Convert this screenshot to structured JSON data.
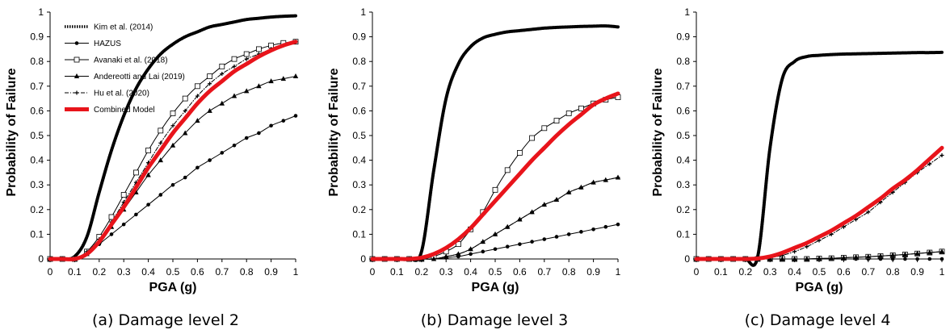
{
  "figure": {
    "legend": [
      {
        "key": "kim",
        "label": "Kim et al. (2014)"
      },
      {
        "key": "hazus",
        "label": "HAZUS"
      },
      {
        "key": "avanaki",
        "label": "Avanaki et al. (2018)"
      },
      {
        "key": "andreotti",
        "label": "Andereotti and Lai (2019)"
      },
      {
        "key": "hu",
        "label": "Hu et al. (2020)"
      },
      {
        "key": "combined",
        "label": "Combined Model"
      }
    ],
    "colors": {
      "combined": "#e8141b",
      "other": "#000000",
      "background": "#ffffff"
    }
  },
  "chart_data": [
    {
      "type": "line",
      "caption": "(a) Damage level 2",
      "xlabel": "PGA (g)",
      "ylabel": "Probability of Failure",
      "xlim": [
        0,
        1
      ],
      "ylim": [
        0,
        1
      ],
      "xticks": [
        "0",
        "0.1",
        "0.2",
        "0.3",
        "0.4",
        "0.5",
        "0.6",
        "0.7",
        "0.8",
        "0.9",
        "1"
      ],
      "yticks": [
        "0",
        "0.1",
        "0.2",
        "0.3",
        "0.4",
        "0.5",
        "0.6",
        "0.7",
        "0.8",
        "0.9",
        "1"
      ],
      "grid": false,
      "legend_position": "top-left",
      "x": [
        0,
        0.05,
        0.1,
        0.15,
        0.2,
        0.25,
        0.3,
        0.35,
        0.4,
        0.45,
        0.5,
        0.55,
        0.6,
        0.65,
        0.7,
        0.75,
        0.8,
        0.85,
        0.9,
        0.95,
        1.0
      ],
      "series": [
        {
          "name": "Kim et al. (2014)",
          "key": "kim",
          "values": [
            0,
            0,
            0.01,
            0.09,
            0.27,
            0.44,
            0.58,
            0.69,
            0.77,
            0.83,
            0.87,
            0.9,
            0.92,
            0.94,
            0.95,
            0.96,
            0.97,
            0.975,
            0.98,
            0.983,
            0.985
          ]
        },
        {
          "name": "HAZUS",
          "key": "hazus",
          "values": [
            0,
            0,
            0,
            0.02,
            0.06,
            0.1,
            0.14,
            0.18,
            0.22,
            0.26,
            0.3,
            0.33,
            0.37,
            0.4,
            0.43,
            0.46,
            0.49,
            0.51,
            0.54,
            0.56,
            0.58
          ]
        },
        {
          "name": "Avanaki et al. (2018)",
          "key": "avanaki",
          "values": [
            0,
            0,
            0,
            0.03,
            0.09,
            0.17,
            0.26,
            0.35,
            0.44,
            0.52,
            0.59,
            0.65,
            0.7,
            0.74,
            0.78,
            0.81,
            0.83,
            0.85,
            0.865,
            0.875,
            0.88
          ]
        },
        {
          "name": "Andereotti and Lai (2019)",
          "key": "andreotti",
          "values": [
            0,
            0,
            0,
            0.02,
            0.07,
            0.13,
            0.2,
            0.27,
            0.34,
            0.4,
            0.46,
            0.51,
            0.56,
            0.6,
            0.63,
            0.66,
            0.68,
            0.7,
            0.72,
            0.73,
            0.74
          ]
        },
        {
          "name": "Hu et al. (2020)",
          "key": "hu",
          "values": [
            0,
            0,
            0,
            0.03,
            0.08,
            0.15,
            0.23,
            0.31,
            0.39,
            0.47,
            0.54,
            0.6,
            0.66,
            0.71,
            0.75,
            0.78,
            0.81,
            0.83,
            0.85,
            0.865,
            0.88
          ]
        },
        {
          "name": "Combined Model",
          "key": "combined",
          "values": [
            0,
            0,
            0,
            0.02,
            0.07,
            0.14,
            0.21,
            0.29,
            0.37,
            0.44,
            0.51,
            0.57,
            0.63,
            0.68,
            0.72,
            0.76,
            0.79,
            0.82,
            0.845,
            0.865,
            0.88
          ]
        }
      ]
    },
    {
      "type": "line",
      "caption": "(b) Damage level 3",
      "xlabel": "PGA (g)",
      "ylabel": "Probability of Failure",
      "xlim": [
        0,
        1
      ],
      "ylim": [
        0,
        1
      ],
      "xticks": [
        "0",
        "0.1",
        "0.2",
        "0.3",
        "0.4",
        "0.5",
        "0.6",
        "0.7",
        "0.8",
        "0.9",
        "1"
      ],
      "yticks": [
        "0",
        "0.1",
        "0.2",
        "0.3",
        "0.4",
        "0.5",
        "0.6",
        "0.7",
        "0.8",
        "0.9",
        "1"
      ],
      "grid": false,
      "x": [
        0,
        0.05,
        0.1,
        0.15,
        0.2,
        0.25,
        0.3,
        0.35,
        0.4,
        0.45,
        0.5,
        0.55,
        0.6,
        0.65,
        0.7,
        0.75,
        0.8,
        0.85,
        0.9,
        0.95,
        1.0
      ],
      "series": [
        {
          "name": "Kim et al. (2014)",
          "key": "kim",
          "values": [
            0,
            0,
            0,
            0,
            0.03,
            0.36,
            0.65,
            0.79,
            0.86,
            0.895,
            0.91,
            0.92,
            0.925,
            0.93,
            0.935,
            0.938,
            0.94,
            0.942,
            0.943,
            0.944,
            0.94
          ]
        },
        {
          "name": "HAZUS",
          "key": "hazus",
          "values": [
            0,
            0,
            0,
            0,
            0,
            0,
            0.005,
            0.01,
            0.02,
            0.03,
            0.04,
            0.05,
            0.06,
            0.07,
            0.08,
            0.09,
            0.1,
            0.11,
            0.12,
            0.13,
            0.14
          ]
        },
        {
          "name": "Avanaki et al. (2018)",
          "key": "avanaki",
          "values": [
            0,
            0,
            0,
            0,
            0,
            0.01,
            0.03,
            0.06,
            0.12,
            0.19,
            0.28,
            0.36,
            0.43,
            0.49,
            0.53,
            0.56,
            0.59,
            0.61,
            0.63,
            0.645,
            0.655
          ]
        },
        {
          "name": "Andereotti and Lai (2019)",
          "key": "andreotti",
          "values": [
            0,
            0,
            0,
            0,
            0,
            0,
            0.01,
            0.02,
            0.04,
            0.07,
            0.1,
            0.13,
            0.16,
            0.19,
            0.22,
            0.24,
            0.27,
            0.29,
            0.31,
            0.32,
            0.33
          ]
        },
        {
          "name": "Hu et al. (2020)",
          "key": "hu",
          "values": [
            0,
            0,
            0,
            0,
            0,
            0,
            0.01,
            0.02,
            0.04,
            0.07,
            0.1,
            0.13,
            0.16,
            0.19,
            0.22,
            0.24,
            0.27,
            0.29,
            0.31,
            0.32,
            0.33
          ]
        },
        {
          "name": "Combined Model",
          "key": "combined",
          "values": [
            0,
            0,
            0,
            0,
            0.005,
            0.02,
            0.045,
            0.08,
            0.125,
            0.18,
            0.235,
            0.29,
            0.345,
            0.4,
            0.45,
            0.5,
            0.545,
            0.585,
            0.625,
            0.65,
            0.67
          ]
        }
      ]
    },
    {
      "type": "line",
      "caption": "(c) Damage level 4",
      "xlabel": "PGA (g)",
      "ylabel": "Probability of Failure",
      "xlim": [
        0,
        1
      ],
      "ylim": [
        0,
        1
      ],
      "xticks": [
        "0",
        "0.1",
        "0.2",
        "0.3",
        "0.4",
        "0.5",
        "0.6",
        "0.7",
        "0.8",
        "0.9",
        "1"
      ],
      "yticks": [
        "0",
        "0.1",
        "0.2",
        "0.3",
        "0.4",
        "0.5",
        "0.6",
        "0.7",
        "0.8",
        "0.9",
        "1"
      ],
      "grid": false,
      "x": [
        0,
        0.05,
        0.1,
        0.15,
        0.2,
        0.25,
        0.3,
        0.35,
        0.4,
        0.45,
        0.5,
        0.55,
        0.6,
        0.65,
        0.7,
        0.75,
        0.8,
        0.85,
        0.9,
        0.95,
        1.0
      ],
      "series": [
        {
          "name": "Kim et al. (2014)",
          "key": "kim",
          "values": [
            0,
            0,
            0,
            0,
            0,
            0.01,
            0.45,
            0.73,
            0.8,
            0.82,
            0.825,
            0.828,
            0.83,
            0.831,
            0.832,
            0.833,
            0.834,
            0.835,
            0.836,
            0.836,
            0.837
          ]
        },
        {
          "name": "HAZUS",
          "key": "hazus",
          "values": [
            0,
            0,
            0,
            0,
            0,
            0,
            0,
            0,
            0,
            0,
            0,
            0,
            0,
            0,
            0,
            0,
            0,
            0,
            0,
            0,
            0
          ]
        },
        {
          "name": "Avanaki et al. (2018)",
          "key": "avanaki",
          "values": [
            0,
            0,
            0,
            0,
            0,
            0,
            0,
            0,
            0,
            0,
            0.002,
            0.003,
            0.005,
            0.007,
            0.009,
            0.012,
            0.015,
            0.018,
            0.022,
            0.026,
            0.03
          ]
        },
        {
          "name": "Andereotti and Lai (2019)",
          "key": "andreotti",
          "values": [
            0,
            0,
            0,
            0,
            0,
            0,
            0,
            0,
            0,
            0,
            0.002,
            0.003,
            0.005,
            0.007,
            0.009,
            0.012,
            0.015,
            0.018,
            0.022,
            0.026,
            0.03
          ]
        },
        {
          "name": "Hu et al. (2020)",
          "key": "hu",
          "values": [
            0,
            0,
            0,
            0,
            0,
            0,
            0.005,
            0.015,
            0.03,
            0.05,
            0.075,
            0.1,
            0.13,
            0.16,
            0.19,
            0.23,
            0.27,
            0.31,
            0.35,
            0.385,
            0.42
          ]
        },
        {
          "name": "Combined Model",
          "key": "combined",
          "values": [
            0,
            0,
            0,
            0,
            0,
            0.002,
            0.01,
            0.025,
            0.045,
            0.065,
            0.09,
            0.115,
            0.145,
            0.175,
            0.21,
            0.245,
            0.285,
            0.32,
            0.36,
            0.405,
            0.45
          ]
        }
      ]
    }
  ]
}
